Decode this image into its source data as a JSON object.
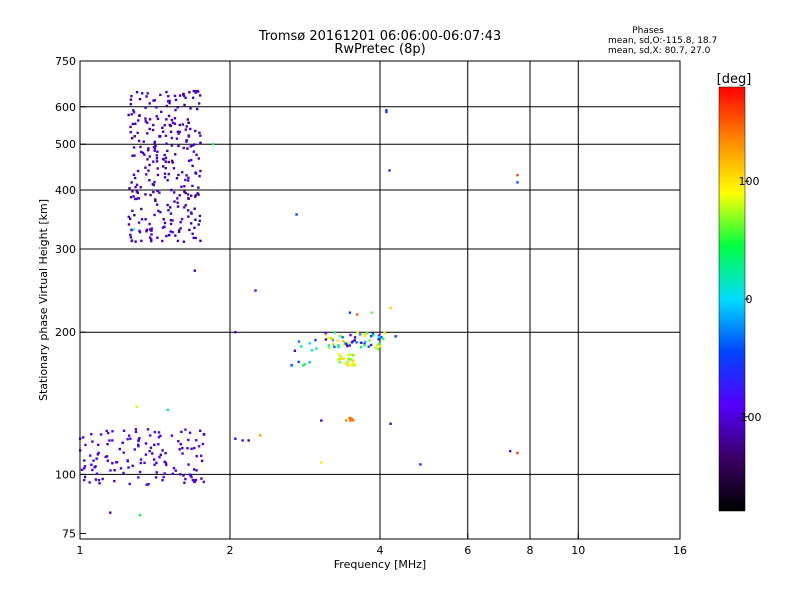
{
  "chart_data": {
    "type": "scatter",
    "title": "Tromsø 20161201 06:06:00-06:07:43",
    "subtitle": "RwPretec (8p)",
    "xlabel": "Frequency [MHz]",
    "ylabel": "Stationary phase Virtual Height [km]",
    "x_scale": "log2",
    "y_scale": "log",
    "xlim": [
      1,
      16
    ],
    "ylim": [
      73,
      750
    ],
    "x_ticks": [
      1,
      2,
      4,
      6,
      8,
      10,
      16
    ],
    "y_ticks": [
      75,
      100,
      200,
      300,
      400,
      500,
      600,
      750
    ],
    "x_grid": [
      2,
      4,
      6,
      8,
      10
    ],
    "y_grid": [
      100,
      200,
      300,
      400,
      500,
      600
    ],
    "color_scale": {
      "label": "[deg]",
      "range": [
        -180,
        180
      ],
      "ticks": [
        100,
        0,
        -100
      ],
      "colors": [
        "#000000",
        "#3a0066",
        "#5500ff",
        "#0044ff",
        "#00ddff",
        "#00ff40",
        "#ffff00",
        "#ff8800",
        "#ff0000"
      ]
    },
    "legend": {
      "title": "Phases",
      "line_o": "mean, sd,O:-115.8, 18.7",
      "line_x": "mean, sd,X:  80.7, 27.0"
    },
    "clusters": [
      {
        "x": [
          1.25,
          1.75
        ],
        "y": [
          310,
          650
        ],
        "n": 300,
        "phase": [
          -125,
          -100
        ]
      },
      {
        "x": [
          1.0,
          1.78
        ],
        "y": [
          95,
          125
        ],
        "n": 140,
        "phase": [
          -115,
          -85
        ]
      },
      {
        "x": [
          2.6,
          3.0
        ],
        "y": [
          170,
          200
        ],
        "n": 12,
        "phase": [
          -110,
          60
        ]
      },
      {
        "x": [
          3.1,
          4.1
        ],
        "y": [
          183,
          200
        ],
        "n": 60,
        "phase": [
          -120,
          120
        ]
      },
      {
        "x": [
          3.3,
          3.6
        ],
        "y": [
          170,
          180
        ],
        "n": 25,
        "phase": [
          60,
          110
        ]
      },
      {
        "x": [
          3.4,
          3.55
        ],
        "y": [
          130,
          132
        ],
        "n": 6,
        "phase": [
          130,
          150
        ]
      }
    ],
    "isolated_points": [
      {
        "x": 1.02,
        "y": 107,
        "phase": -100
      },
      {
        "x": 1.08,
        "y": 108,
        "phase": -100
      },
      {
        "x": 1.15,
        "y": 83,
        "phase": -110
      },
      {
        "x": 1.32,
        "y": 82,
        "phase": 40
      },
      {
        "x": 1.3,
        "y": 139,
        "phase": 80
      },
      {
        "x": 1.5,
        "y": 137,
        "phase": 20
      },
      {
        "x": 1.62,
        "y": 96,
        "phase": -110
      },
      {
        "x": 1.28,
        "y": 330,
        "phase": 10
      },
      {
        "x": 1.43,
        "y": 317,
        "phase": -100
      },
      {
        "x": 1.7,
        "y": 270,
        "phase": -115
      },
      {
        "x": 1.85,
        "y": 500,
        "phase": 40
      },
      {
        "x": 1.38,
        "y": 610,
        "phase": -115
      },
      {
        "x": 2.05,
        "y": 200,
        "phase": -100
      },
      {
        "x": 2.25,
        "y": 245,
        "phase": -90
      },
      {
        "x": 2.72,
        "y": 355,
        "phase": -50
      },
      {
        "x": 2.05,
        "y": 119,
        "phase": -100
      },
      {
        "x": 2.12,
        "y": 118,
        "phase": -100
      },
      {
        "x": 2.18,
        "y": 118,
        "phase": -110
      },
      {
        "x": 2.3,
        "y": 121,
        "phase": 130
      },
      {
        "x": 3.05,
        "y": 130,
        "phase": -100
      },
      {
        "x": 3.05,
        "y": 106,
        "phase": 100
      },
      {
        "x": 3.48,
        "y": 220,
        "phase": -50
      },
      {
        "x": 3.6,
        "y": 218,
        "phase": 150
      },
      {
        "x": 3.85,
        "y": 220,
        "phase": 60
      },
      {
        "x": 4.2,
        "y": 225,
        "phase": 110
      },
      {
        "x": 4.3,
        "y": 196,
        "phase": -50
      },
      {
        "x": 4.2,
        "y": 128,
        "phase": -110
      },
      {
        "x": 4.12,
        "y": 590,
        "phase": -60
      },
      {
        "x": 4.12,
        "y": 585,
        "phase": -50
      },
      {
        "x": 4.18,
        "y": 440,
        "phase": -60
      },
      {
        "x": 4.82,
        "y": 105,
        "phase": -70
      },
      {
        "x": 7.3,
        "y": 112,
        "phase": -90
      },
      {
        "x": 7.55,
        "y": 111,
        "phase": 160
      },
      {
        "x": 7.55,
        "y": 430,
        "phase": 160
      },
      {
        "x": 7.55,
        "y": 415,
        "phase": -40
      }
    ]
  }
}
